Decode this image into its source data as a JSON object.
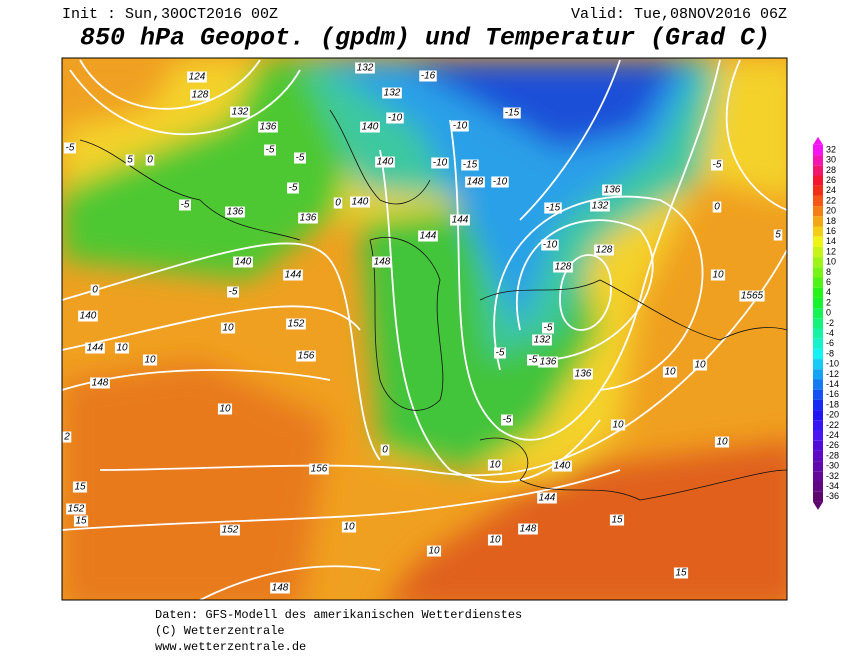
{
  "header": {
    "init": "Init : Sun,30OCT2016 00Z",
    "valid": "Valid: Tue,08NOV2016 06Z",
    "title": "850 hPa Geopot. (gpdm) und Temperatur (Grad C)"
  },
  "colorbar": {
    "ticks": [
      32,
      30,
      28,
      26,
      24,
      22,
      20,
      18,
      16,
      14,
      12,
      10,
      8,
      6,
      4,
      2,
      0,
      -2,
      -4,
      -6,
      -8,
      -10,
      -12,
      -14,
      -16,
      -18,
      -20,
      -22,
      -24,
      -26,
      -28,
      -30,
      -32,
      -34,
      -36
    ]
  },
  "contour_labels": [
    124,
    128,
    132,
    136,
    132,
    132,
    -16,
    -15,
    -10,
    140,
    -10,
    140,
    -10,
    -15,
    148,
    -10,
    0,
    -5,
    -5,
    -5,
    -5,
    0,
    140,
    136,
    136,
    -5,
    144,
    -15,
    132,
    136,
    -5,
    0,
    5,
    144,
    140,
    144,
    148,
    -10,
    128,
    128,
    10,
    1565,
    0,
    -5,
    140,
    10,
    152,
    -5,
    132,
    144,
    10,
    10,
    156,
    -5,
    -5,
    136,
    136,
    10,
    10,
    148,
    10,
    -5,
    0,
    10,
    10,
    156,
    140,
    144,
    10,
    15,
    152,
    15,
    152,
    10,
    148,
    15,
    10,
    10,
    15,
    148,
    2,
    5
  ],
  "footer": {
    "lines": [
      "Daten: GFS-Modell des amerikanischen Wetterdienstes",
      "(C) Wetterzentrale",
      "www.wetterzentrale.de"
    ]
  }
}
